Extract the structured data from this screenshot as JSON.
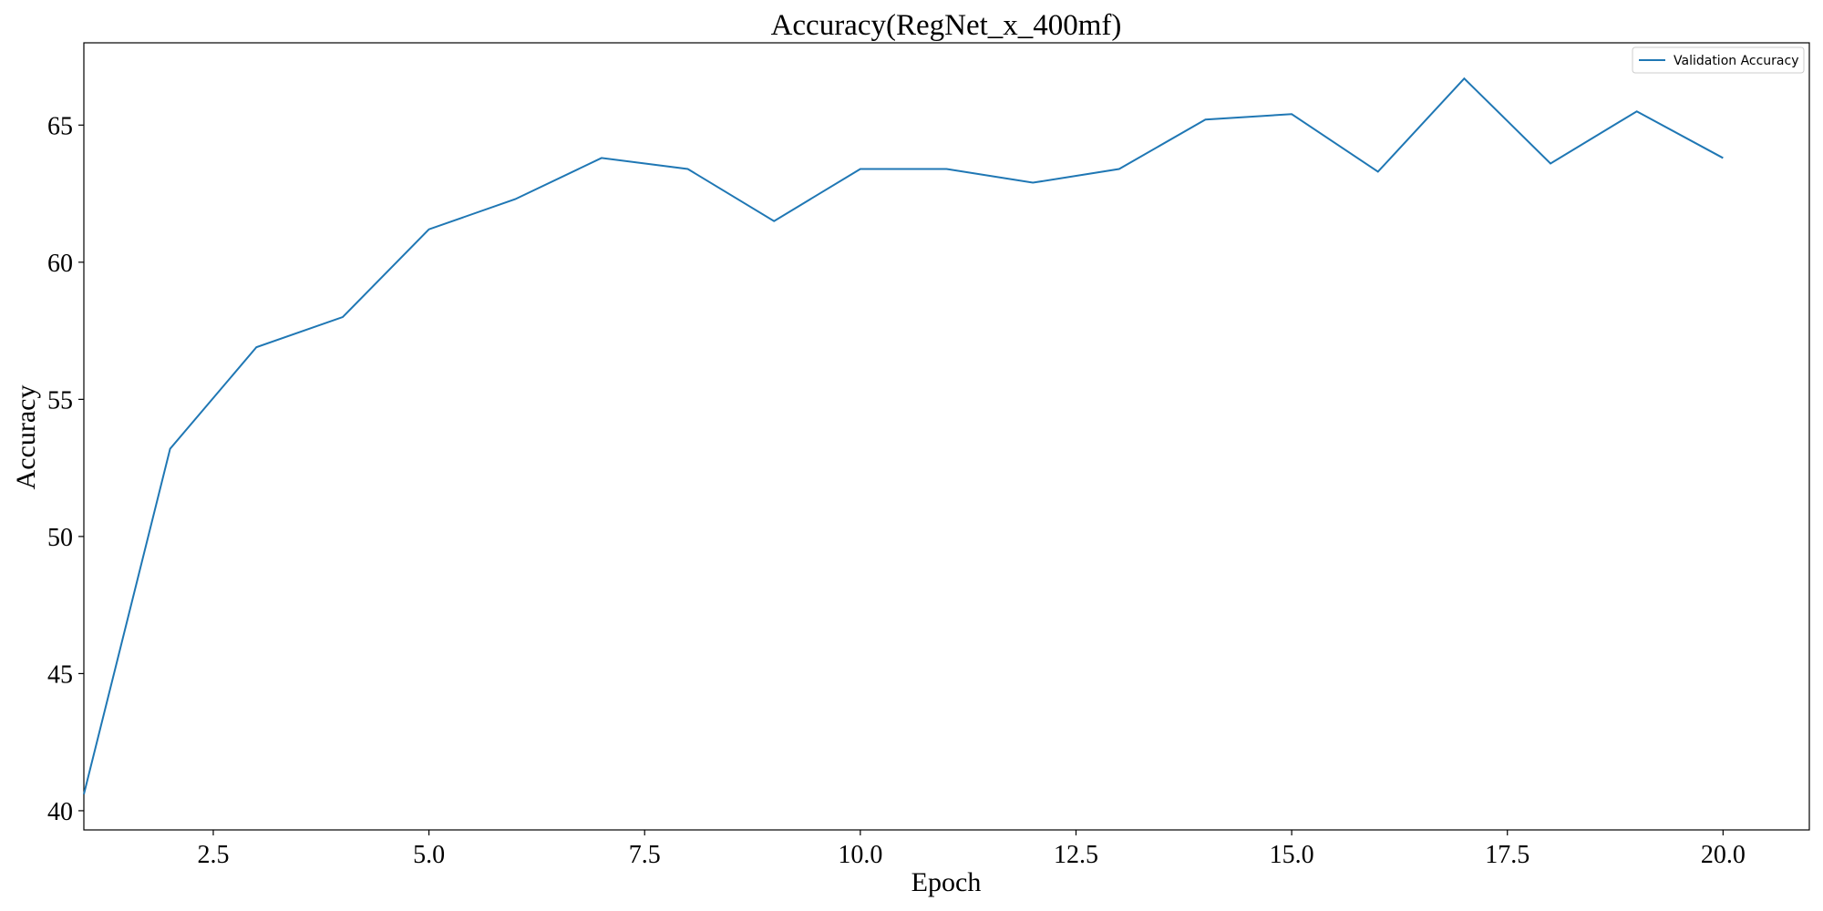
{
  "chart_data": {
    "type": "line",
    "title": "Accuracy(RegNet_x_400mf)",
    "xlabel": "Epoch",
    "ylabel": "Accuracy",
    "xlim": [
      1,
      21
    ],
    "ylim": [
      39.3,
      68.0
    ],
    "xticks": [
      2.5,
      5.0,
      7.5,
      10.0,
      12.5,
      15.0,
      17.5,
      20.0
    ],
    "xtick_labels": [
      "2.5",
      "5.0",
      "7.5",
      "10.0",
      "12.5",
      "15.0",
      "17.5",
      "20.0"
    ],
    "yticks": [
      40,
      45,
      50,
      55,
      60,
      65
    ],
    "ytick_labels": [
      "40",
      "45",
      "50",
      "55",
      "60",
      "65"
    ],
    "grid": false,
    "legend_position": "top-right",
    "series": [
      {
        "name": "Validation Accuracy",
        "color": "#1f77b4",
        "x": [
          1,
          2,
          3,
          4,
          5,
          6,
          7,
          8,
          9,
          10,
          11,
          12,
          13,
          14,
          15,
          16,
          17,
          18,
          19,
          20
        ],
        "y": [
          40.6,
          53.2,
          56.9,
          58.0,
          61.2,
          62.3,
          63.8,
          63.4,
          61.5,
          63.4,
          63.4,
          62.9,
          63.4,
          65.2,
          65.4,
          63.3,
          66.7,
          63.6,
          65.5,
          63.8
        ]
      }
    ]
  }
}
